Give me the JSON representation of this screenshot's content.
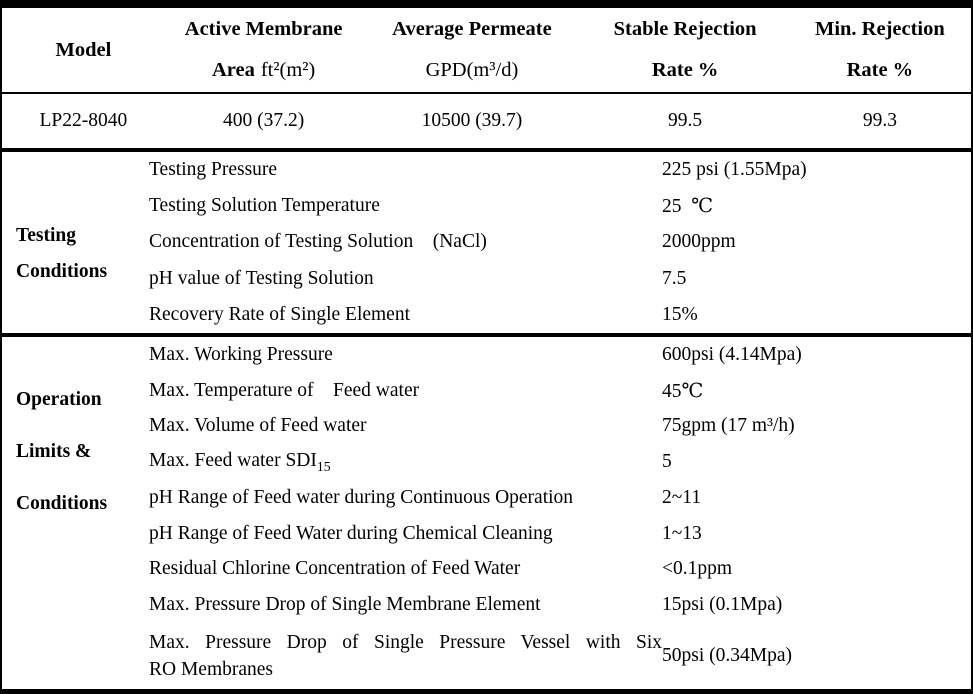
{
  "spec_table": {
    "headers": [
      {
        "line1": "Model",
        "line2_bold": "",
        "line2_reg": ""
      },
      {
        "line1": "Active Membrane",
        "line2_bold": "Area",
        "line2_reg": "ft²(m²)"
      },
      {
        "line1": "Average Permeate",
        "line2_bold": "",
        "line2_reg": "GPD(m³/d)"
      },
      {
        "line1": "Stable Rejection",
        "line2_bold": "Rate %",
        "line2_reg": ""
      },
      {
        "line1": "Min. Rejection",
        "line2_bold": "Rate %",
        "line2_reg": ""
      }
    ],
    "data_row": {
      "model": "LP22-8040",
      "area": "400 (37.2)",
      "permeate": "10500 (39.7)",
      "stable_rejection": "99.5",
      "min_rejection": "99.3"
    }
  },
  "sections": [
    {
      "label_lines": [
        "Testing",
        "Conditions"
      ],
      "rows": [
        {
          "param": "Testing Pressure",
          "value": "225 psi (1.55Mpa)"
        },
        {
          "param": "Testing Solution Temperature",
          "value": "25  ℃"
        },
        {
          "param": "Concentration of Testing Solution    (NaCl)",
          "value": "2000ppm"
        },
        {
          "param": "pH value of Testing Solution",
          "value": "7.5"
        },
        {
          "param": "Recovery Rate of Single Element",
          "value": "15%"
        }
      ]
    },
    {
      "label_lines": [
        "Operation",
        "Limits &",
        "Conditions"
      ],
      "rows": [
        {
          "param": "Max. Working Pressure",
          "value": "600psi (4.14Mpa)"
        },
        {
          "param": "Max. Temperature of    Feed water",
          "value": "45℃"
        },
        {
          "param": "Max. Volume of Feed water",
          "value": "75gpm (17 m³/h)"
        },
        {
          "param": "Max. Feed water SDI",
          "param_sub": "15",
          "value": "5"
        },
        {
          "param": "pH Range of Feed water during Continuous Operation",
          "value": "2~11"
        },
        {
          "param": "pH Range of Feed Water during Chemical Cleaning",
          "value": "1~13"
        },
        {
          "param": "Residual Chlorine Concentration of Feed Water",
          "value": "<0.1ppm"
        },
        {
          "param": "Max. Pressure Drop of Single Membrane Element",
          "value": "15psi (0.1Mpa)"
        },
        {
          "param": "Max. Pressure Drop of Single Pressure Vessel with Six",
          "param_line2": "RO Membranes",
          "value": "50psi (0.34Mpa)"
        }
      ]
    }
  ]
}
